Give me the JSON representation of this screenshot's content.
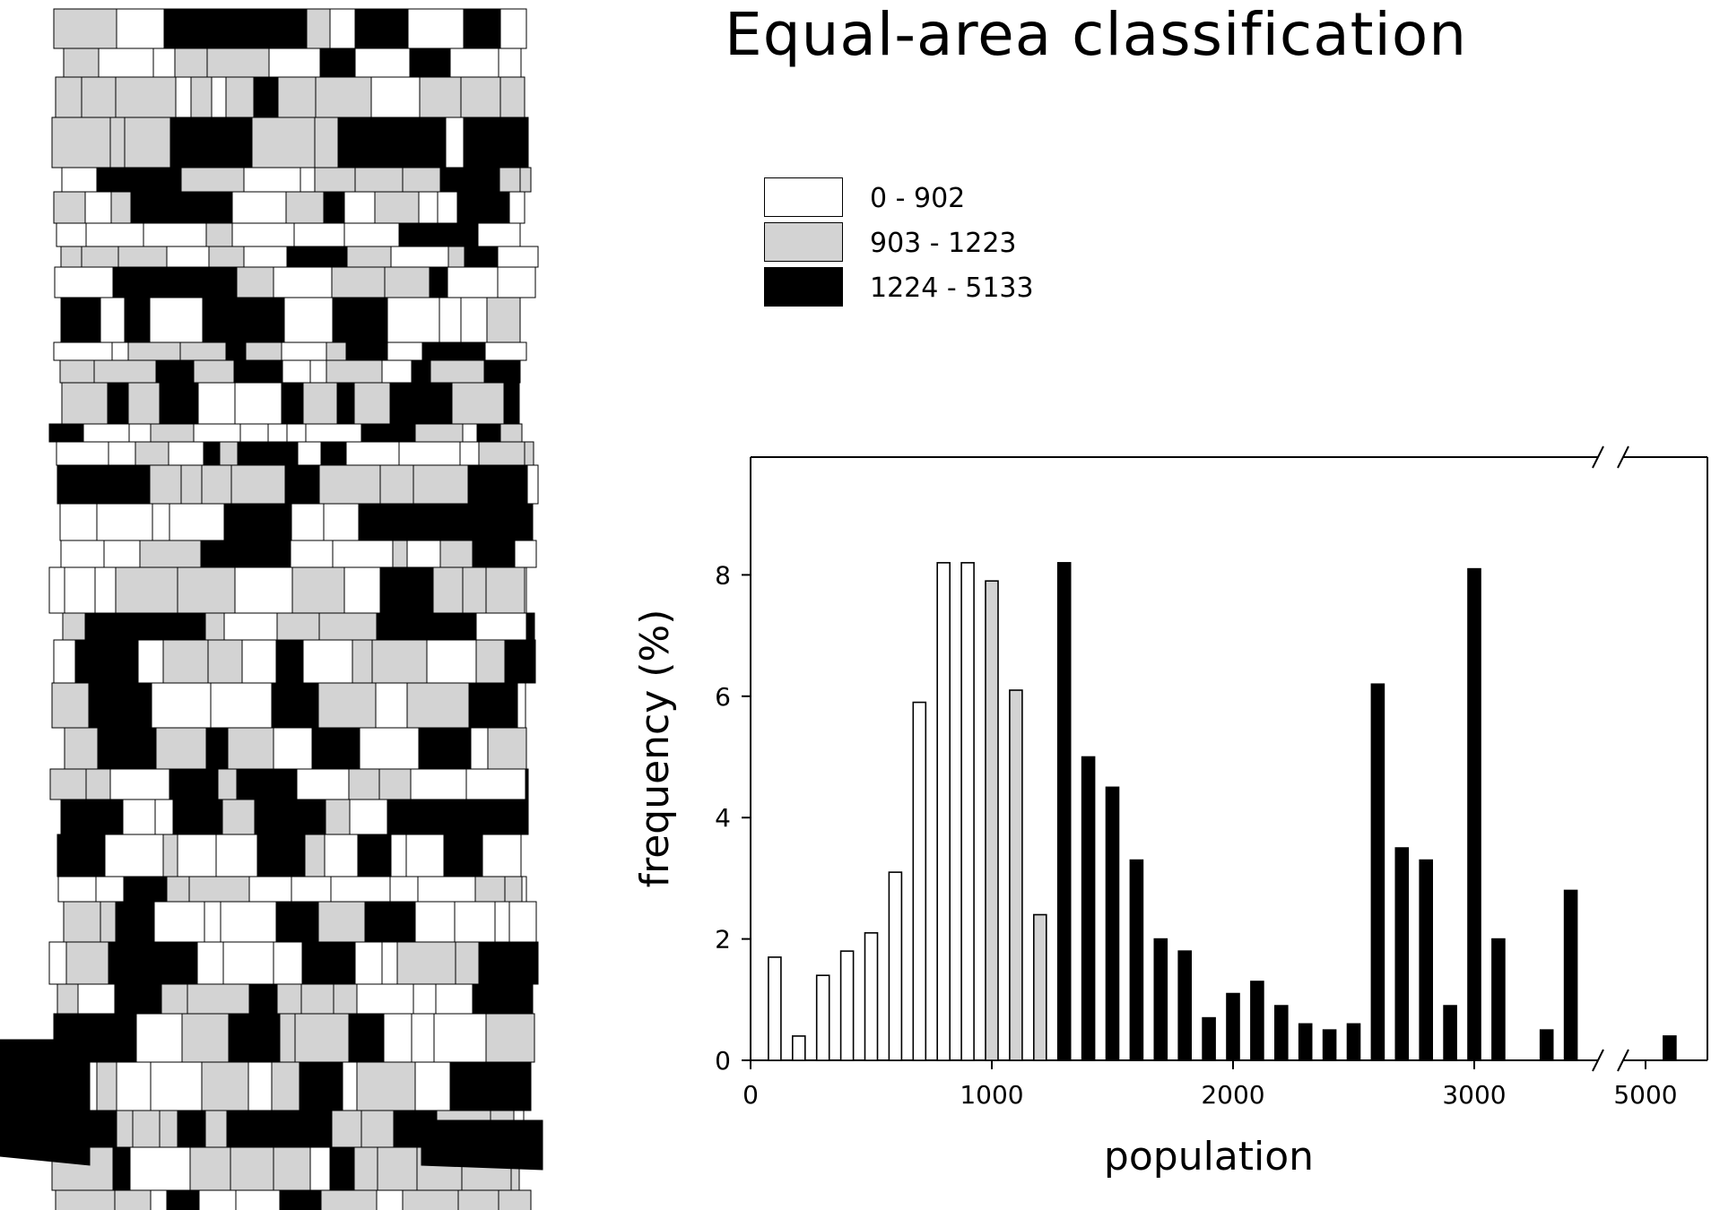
{
  "title": "Equal-area classification",
  "legend": [
    {
      "label": "0 - 902",
      "color": "#ffffff"
    },
    {
      "label": "903 - 1223",
      "color": "#d3d3d3"
    },
    {
      "label": "1224 - 5133",
      "color": "#000000"
    }
  ],
  "colors": {
    "white_class": "#ffffff",
    "gray_class": "#d3d3d3",
    "black_class": "#000000"
  },
  "chart_data": {
    "type": "bar",
    "title": "Equal-area classification",
    "xlabel": "population",
    "ylabel": "frequency (%)",
    "ylim": [
      0,
      10
    ],
    "xlim": [
      0,
      5200
    ],
    "x_axis_break": [
      3650,
      4900
    ],
    "yticks": [
      0,
      2,
      4,
      6,
      8
    ],
    "xticks": [
      0,
      1000,
      2000,
      3000,
      5000
    ],
    "bin_width": 100,
    "bars": [
      {
        "x": 100,
        "value": 1.7,
        "class": 0
      },
      {
        "x": 200,
        "value": 0.4,
        "class": 0
      },
      {
        "x": 300,
        "value": 1.4,
        "class": 0
      },
      {
        "x": 400,
        "value": 1.8,
        "class": 0
      },
      {
        "x": 500,
        "value": 2.1,
        "class": 0
      },
      {
        "x": 600,
        "value": 3.1,
        "class": 0
      },
      {
        "x": 700,
        "value": 5.9,
        "class": 0
      },
      {
        "x": 800,
        "value": 8.2,
        "class": 0
      },
      {
        "x": 900,
        "value": 8.2,
        "class": 0
      },
      {
        "x": 1000,
        "value": 7.9,
        "class": 1
      },
      {
        "x": 1100,
        "value": 6.1,
        "class": 1
      },
      {
        "x": 1200,
        "value": 2.4,
        "class": 1
      },
      {
        "x": 1300,
        "value": 8.2,
        "class": 2
      },
      {
        "x": 1400,
        "value": 5.0,
        "class": 2
      },
      {
        "x": 1500,
        "value": 4.5,
        "class": 2
      },
      {
        "x": 1600,
        "value": 3.3,
        "class": 2
      },
      {
        "x": 1700,
        "value": 2.0,
        "class": 2
      },
      {
        "x": 1800,
        "value": 1.8,
        "class": 2
      },
      {
        "x": 1900,
        "value": 0.7,
        "class": 2
      },
      {
        "x": 2000,
        "value": 1.1,
        "class": 2
      },
      {
        "x": 2100,
        "value": 1.3,
        "class": 2
      },
      {
        "x": 2200,
        "value": 0.9,
        "class": 2
      },
      {
        "x": 2300,
        "value": 0.6,
        "class": 2
      },
      {
        "x": 2400,
        "value": 0.5,
        "class": 2
      },
      {
        "x": 2500,
        "value": 0.6,
        "class": 2
      },
      {
        "x": 2600,
        "value": 6.2,
        "class": 2
      },
      {
        "x": 2700,
        "value": 3.5,
        "class": 2
      },
      {
        "x": 2800,
        "value": 3.3,
        "class": 2
      },
      {
        "x": 2900,
        "value": 0.9,
        "class": 2
      },
      {
        "x": 3000,
        "value": 8.1,
        "class": 2
      },
      {
        "x": 3100,
        "value": 2.0,
        "class": 2
      },
      {
        "x": 3300,
        "value": 0.5,
        "class": 2
      },
      {
        "x": 3400,
        "value": 2.8,
        "class": 2
      },
      {
        "x": 5100,
        "value": 0.4,
        "class": 2
      }
    ]
  }
}
